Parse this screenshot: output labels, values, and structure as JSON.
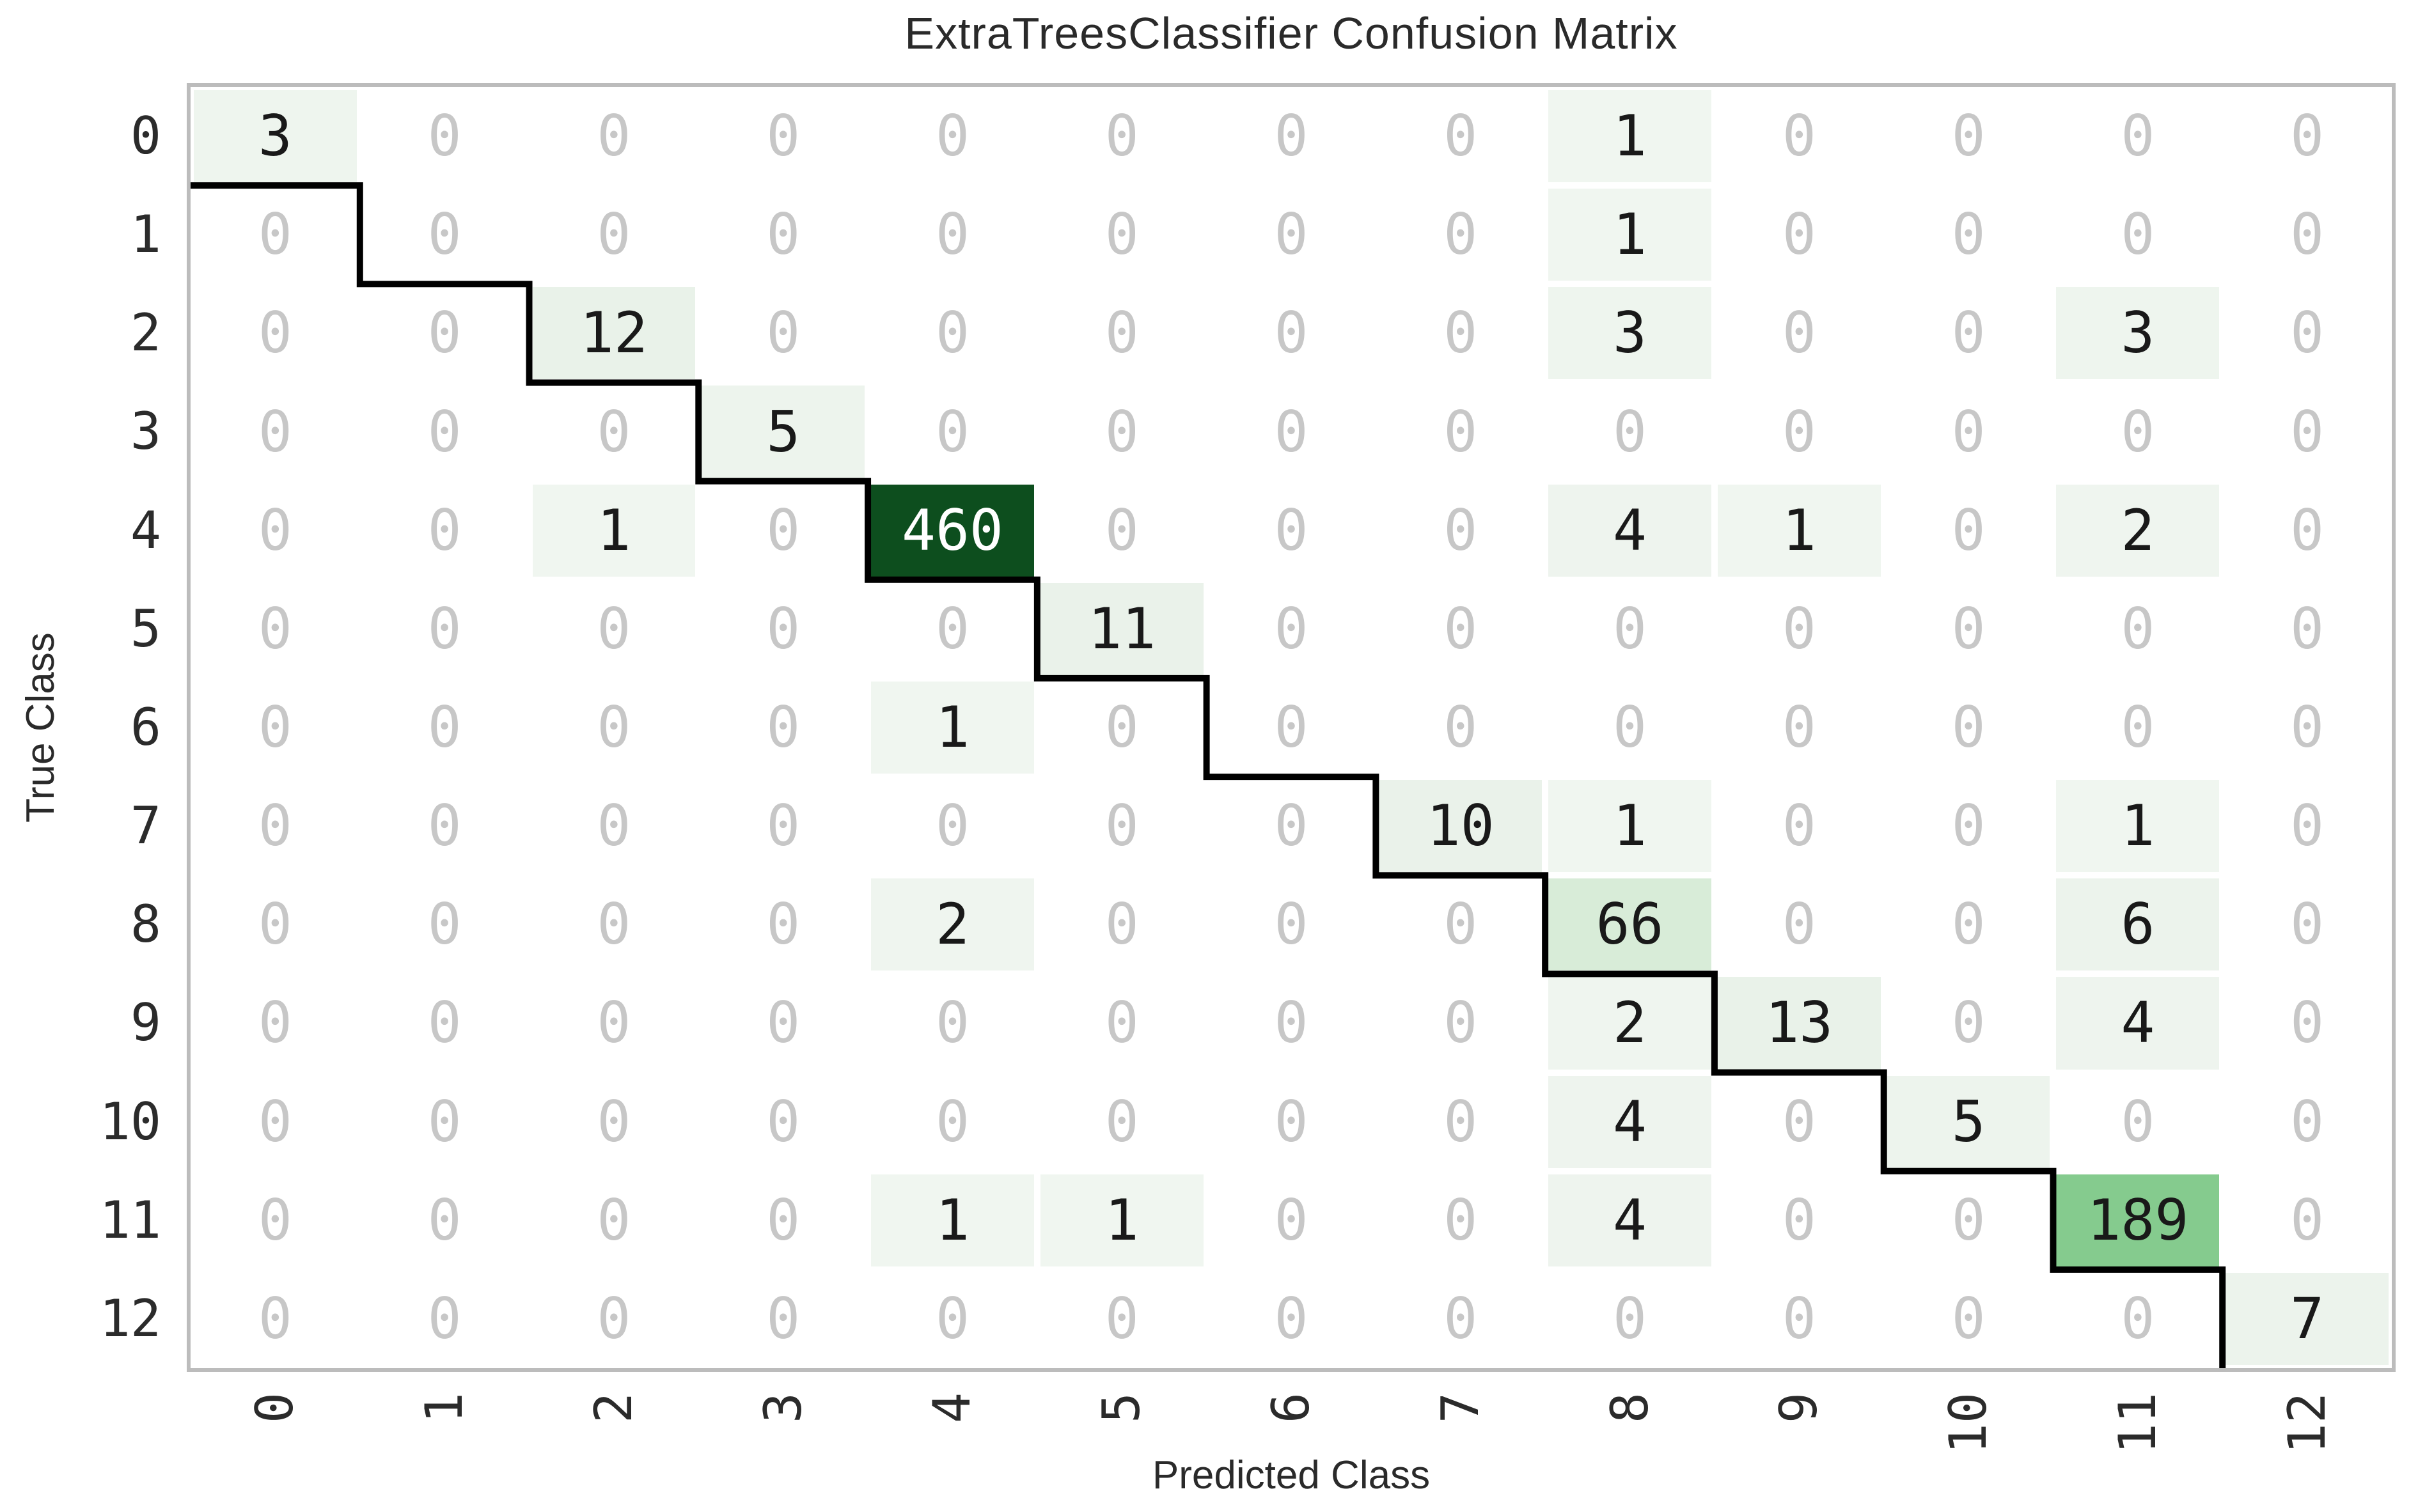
{
  "chart_data": {
    "type": "heatmap",
    "title": "ExtraTreesClassifier Confusion Matrix",
    "xlabel": "Predicted Class",
    "ylabel": "True Class",
    "x_tick_labels": [
      "0",
      "1",
      "2",
      "3",
      "4",
      "5",
      "6",
      "7",
      "8",
      "9",
      "10",
      "11",
      "12"
    ],
    "y_tick_labels": [
      "0",
      "1",
      "2",
      "3",
      "4",
      "5",
      "6",
      "7",
      "8",
      "9",
      "10",
      "11",
      "12"
    ],
    "matrix": [
      [
        3,
        0,
        0,
        0,
        0,
        0,
        0,
        0,
        1,
        0,
        0,
        0,
        0
      ],
      [
        0,
        0,
        0,
        0,
        0,
        0,
        0,
        0,
        1,
        0,
        0,
        0,
        0
      ],
      [
        0,
        0,
        12,
        0,
        0,
        0,
        0,
        0,
        3,
        0,
        0,
        3,
        0
      ],
      [
        0,
        0,
        0,
        5,
        0,
        0,
        0,
        0,
        0,
        0,
        0,
        0,
        0
      ],
      [
        0,
        0,
        1,
        0,
        460,
        0,
        0,
        0,
        4,
        1,
        0,
        2,
        0
      ],
      [
        0,
        0,
        0,
        0,
        0,
        11,
        0,
        0,
        0,
        0,
        0,
        0,
        0
      ],
      [
        0,
        0,
        0,
        0,
        1,
        0,
        0,
        0,
        0,
        0,
        0,
        0,
        0
      ],
      [
        0,
        0,
        0,
        0,
        0,
        0,
        0,
        10,
        1,
        0,
        0,
        1,
        0
      ],
      [
        0,
        0,
        0,
        0,
        2,
        0,
        0,
        0,
        66,
        0,
        0,
        6,
        0
      ],
      [
        0,
        0,
        0,
        0,
        0,
        0,
        0,
        0,
        2,
        13,
        0,
        4,
        0
      ],
      [
        0,
        0,
        0,
        0,
        0,
        0,
        0,
        0,
        4,
        0,
        5,
        0,
        0
      ],
      [
        0,
        0,
        0,
        0,
        1,
        1,
        0,
        0,
        4,
        0,
        0,
        189,
        0
      ],
      [
        0,
        0,
        0,
        0,
        0,
        0,
        0,
        0,
        0,
        0,
        0,
        0,
        7
      ]
    ],
    "vmin": 0,
    "vmax": 460,
    "colormap": "Greens",
    "color_anchors": [
      [
        0,
        "#ffffff"
      ],
      [
        1,
        "#f0f6f0"
      ],
      [
        6,
        "#ecf3ec"
      ],
      [
        13,
        "#e9f2e9"
      ],
      [
        66,
        "#d8ecd8"
      ],
      [
        189,
        "#85cb8e"
      ],
      [
        460,
        "#0d4e1e"
      ]
    ],
    "colors": {
      "zero_text": "#c7c7c7",
      "value_text": "#191919",
      "high_value_text": "#ffffff",
      "diagonal_line": "#000000",
      "spine": "#bcbcbc",
      "tick_text": "#2b2b2b",
      "title_text": "#2a2a2a"
    },
    "grid": false,
    "legend_position": "none"
  }
}
